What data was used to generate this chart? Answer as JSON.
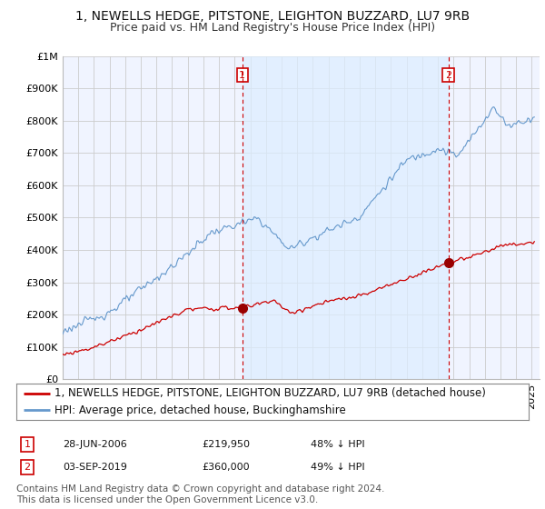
{
  "title": "1, NEWELLS HEDGE, PITSTONE, LEIGHTON BUZZARD, LU7 9RB",
  "subtitle": "Price paid vs. HM Land Registry's House Price Index (HPI)",
  "ylabel_ticks": [
    "£0",
    "£100K",
    "£200K",
    "£300K",
    "£400K",
    "£500K",
    "£600K",
    "£700K",
    "£800K",
    "£900K",
    "£1M"
  ],
  "ytick_values": [
    0,
    100000,
    200000,
    300000,
    400000,
    500000,
    600000,
    700000,
    800000,
    900000,
    1000000
  ],
  "ylim": [
    0,
    1000000
  ],
  "xlim_start": 1995.0,
  "xlim_end": 2025.5,
  "sale1_date": 2006.49,
  "sale1_price": 219950,
  "sale2_date": 2019.67,
  "sale2_price": 360000,
  "legend_line1": "1, NEWELLS HEDGE, PITSTONE, LEIGHTON BUZZARD, LU7 9RB (detached house)",
  "legend_line2": "HPI: Average price, detached house, Buckinghamshire",
  "footnote": "Contains HM Land Registry data © Crown copyright and database right 2024.\nThis data is licensed under the Open Government Licence v3.0.",
  "line_property_color": "#cc0000",
  "line_hpi_color": "#6699cc",
  "fill_color": "#ddeeff",
  "sale_marker_color": "#990000",
  "vline_color": "#cc0000",
  "background_color": "#ffffff",
  "chart_bg_color": "#f0f4ff",
  "grid_color": "#cccccc",
  "title_fontsize": 10,
  "subtitle_fontsize": 9,
  "tick_fontsize": 8,
  "legend_fontsize": 8.5,
  "footnote_fontsize": 7.5
}
